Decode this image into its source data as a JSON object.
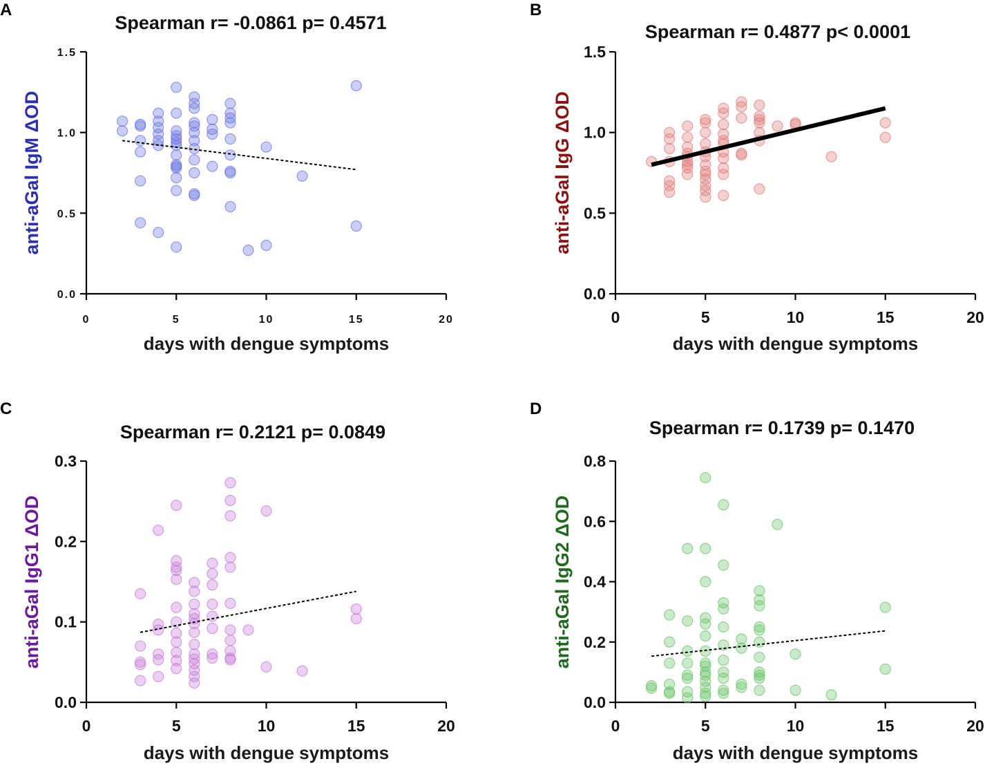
{
  "chart_data": [
    {
      "panel": "A",
      "type": "scatter",
      "title": "Spearman r= -0.0861   p= 0.4571",
      "xlabel": "days with dengue symptoms",
      "ylabel": "anti-aGal IgM ΔOD",
      "xlim": [
        0,
        20
      ],
      "ylim": [
        0.0,
        1.5
      ],
      "xticks": [
        0,
        5,
        10,
        15,
        20
      ],
      "yticks": [
        0.0,
        0.5,
        1.0,
        1.5
      ],
      "ytick_labels": [
        "0.0",
        "0.5",
        "1.0",
        "1.5"
      ],
      "point_color": "#6b74e0",
      "label_color": "#2b2fb0",
      "trend": {
        "x": [
          2,
          15
        ],
        "y": [
          0.95,
          0.77
        ],
        "style": "dashed"
      },
      "points": [
        [
          2,
          1.07
        ],
        [
          2,
          1.01
        ],
        [
          3,
          1.05
        ],
        [
          3,
          1.04
        ],
        [
          3,
          0.95
        ],
        [
          3,
          0.88
        ],
        [
          3,
          0.7
        ],
        [
          3,
          0.44
        ],
        [
          4,
          1.12
        ],
        [
          4,
          1.07
        ],
        [
          4,
          1.03
        ],
        [
          4,
          0.99
        ],
        [
          4,
          0.95
        ],
        [
          4,
          0.92
        ],
        [
          4,
          0.38
        ],
        [
          5,
          1.28
        ],
        [
          5,
          1.12
        ],
        [
          5,
          1.01
        ],
        [
          5,
          0.98
        ],
        [
          5,
          0.96
        ],
        [
          5,
          0.94
        ],
        [
          5,
          0.92
        ],
        [
          5,
          0.86
        ],
        [
          5,
          0.8
        ],
        [
          5,
          0.79
        ],
        [
          5,
          0.78
        ],
        [
          5,
          0.72
        ],
        [
          5,
          0.64
        ],
        [
          5,
          0.29
        ],
        [
          6,
          1.22
        ],
        [
          6,
          1.18
        ],
        [
          6,
          1.15
        ],
        [
          6,
          1.06
        ],
        [
          6,
          1.04
        ],
        [
          6,
          1.0
        ],
        [
          6,
          0.95
        ],
        [
          6,
          0.9
        ],
        [
          6,
          0.83
        ],
        [
          6,
          0.75
        ],
        [
          6,
          0.62
        ],
        [
          6,
          0.61
        ],
        [
          7,
          1.08
        ],
        [
          7,
          1.02
        ],
        [
          7,
          0.99
        ],
        [
          7,
          0.79
        ],
        [
          8,
          1.18
        ],
        [
          8,
          1.12
        ],
        [
          8,
          1.09
        ],
        [
          8,
          1.06
        ],
        [
          8,
          0.96
        ],
        [
          8,
          0.86
        ],
        [
          8,
          0.76
        ],
        [
          8,
          0.75
        ],
        [
          8,
          0.54
        ],
        [
          9,
          0.27
        ],
        [
          10,
          0.91
        ],
        [
          10,
          0.3
        ],
        [
          12,
          0.73
        ],
        [
          15,
          1.29
        ],
        [
          15,
          0.42
        ]
      ]
    },
    {
      "panel": "B",
      "type": "scatter",
      "title": "Spearman r= 0.4877   p< 0.0001",
      "xlabel": "days with dengue symptoms",
      "ylabel": "anti-aGal IgG ΔOD",
      "xlim": [
        0,
        20
      ],
      "ylim": [
        0.0,
        1.5
      ],
      "xticks": [
        0,
        5,
        10,
        15,
        20
      ],
      "yticks": [
        0.0,
        0.5,
        1.0,
        1.5
      ],
      "ytick_labels": [
        "0.0",
        "0.5",
        "1.0",
        "1.5"
      ],
      "point_color": "#e07b7b",
      "label_color": "#8b1010",
      "trend": {
        "x": [
          2,
          15
        ],
        "y": [
          0.8,
          1.15
        ],
        "style": "solid"
      },
      "points": [
        [
          2,
          0.82
        ],
        [
          3,
          1.0
        ],
        [
          3,
          0.96
        ],
        [
          3,
          0.9
        ],
        [
          3,
          0.82
        ],
        [
          3,
          0.7
        ],
        [
          3,
          0.67
        ],
        [
          3,
          0.63
        ],
        [
          4,
          1.04
        ],
        [
          4,
          0.97
        ],
        [
          4,
          0.91
        ],
        [
          4,
          0.87
        ],
        [
          4,
          0.85
        ],
        [
          4,
          0.82
        ],
        [
          4,
          0.8
        ],
        [
          4,
          0.78
        ],
        [
          4,
          0.74
        ],
        [
          5,
          1.08
        ],
        [
          5,
          1.06
        ],
        [
          5,
          1.0
        ],
        [
          5,
          0.93
        ],
        [
          5,
          0.88
        ],
        [
          5,
          0.85
        ],
        [
          5,
          0.8
        ],
        [
          5,
          0.76
        ],
        [
          5,
          0.74
        ],
        [
          5,
          0.71
        ],
        [
          5,
          0.67
        ],
        [
          5,
          0.64
        ],
        [
          5,
          0.6
        ],
        [
          6,
          1.15
        ],
        [
          6,
          1.12
        ],
        [
          6,
          1.05
        ],
        [
          6,
          0.99
        ],
        [
          6,
          0.95
        ],
        [
          6,
          0.93
        ],
        [
          6,
          0.88
        ],
        [
          6,
          0.84
        ],
        [
          6,
          0.78
        ],
        [
          6,
          0.74
        ],
        [
          6,
          0.61
        ],
        [
          7,
          1.19
        ],
        [
          7,
          1.16
        ],
        [
          7,
          1.09
        ],
        [
          7,
          0.87
        ],
        [
          7,
          0.86
        ],
        [
          8,
          1.17
        ],
        [
          8,
          1.1
        ],
        [
          8,
          1.08
        ],
        [
          8,
          1.06
        ],
        [
          8,
          1.0
        ],
        [
          8,
          0.95
        ],
        [
          8,
          0.65
        ],
        [
          9,
          1.04
        ],
        [
          10,
          1.06
        ],
        [
          10,
          1.05
        ],
        [
          12,
          0.85
        ],
        [
          15,
          1.06
        ],
        [
          15,
          0.97
        ]
      ]
    },
    {
      "panel": "C",
      "type": "scatter",
      "title": "Spearman r= 0.2121   p= 0.0849",
      "xlabel": "days with dengue symptoms",
      "ylabel": "anti-aGal IgG1 ΔOD",
      "xlim": [
        0,
        20
      ],
      "ylim": [
        0.0,
        0.3
      ],
      "xticks": [
        0,
        5,
        10,
        15,
        20
      ],
      "yticks": [
        0.0,
        0.1,
        0.2,
        0.3
      ],
      "ytick_labels": [
        "0.0",
        "0.1",
        "0.2",
        "0.3"
      ],
      "point_color": "#c57ad8",
      "label_color": "#6a1a9a",
      "trend": {
        "x": [
          3,
          15
        ],
        "y": [
          0.087,
          0.138
        ],
        "style": "dashed"
      },
      "points": [
        [
          3,
          0.135
        ],
        [
          3,
          0.07
        ],
        [
          3,
          0.05
        ],
        [
          3,
          0.047
        ],
        [
          3,
          0.027
        ],
        [
          4,
          0.214
        ],
        [
          4,
          0.097
        ],
        [
          4,
          0.09
        ],
        [
          4,
          0.06
        ],
        [
          4,
          0.053
        ],
        [
          4,
          0.032
        ],
        [
          5,
          0.245
        ],
        [
          5,
          0.176
        ],
        [
          5,
          0.168
        ],
        [
          5,
          0.164
        ],
        [
          5,
          0.153
        ],
        [
          5,
          0.118
        ],
        [
          5,
          0.1
        ],
        [
          5,
          0.086
        ],
        [
          5,
          0.075
        ],
        [
          5,
          0.062
        ],
        [
          5,
          0.052
        ],
        [
          5,
          0.042
        ],
        [
          6,
          0.149
        ],
        [
          6,
          0.138
        ],
        [
          6,
          0.122
        ],
        [
          6,
          0.11
        ],
        [
          6,
          0.104
        ],
        [
          6,
          0.098
        ],
        [
          6,
          0.087
        ],
        [
          6,
          0.072
        ],
        [
          6,
          0.06
        ],
        [
          6,
          0.054
        ],
        [
          6,
          0.048
        ],
        [
          6,
          0.04
        ],
        [
          6,
          0.032
        ],
        [
          6,
          0.024
        ],
        [
          7,
          0.173
        ],
        [
          7,
          0.16
        ],
        [
          7,
          0.146
        ],
        [
          7,
          0.122
        ],
        [
          7,
          0.107
        ],
        [
          7,
          0.092
        ],
        [
          7,
          0.06
        ],
        [
          7,
          0.055
        ],
        [
          8,
          0.273
        ],
        [
          8,
          0.251
        ],
        [
          8,
          0.232
        ],
        [
          8,
          0.18
        ],
        [
          8,
          0.168
        ],
        [
          8,
          0.123
        ],
        [
          8,
          0.09
        ],
        [
          8,
          0.077
        ],
        [
          8,
          0.064
        ],
        [
          8,
          0.055
        ],
        [
          8,
          0.053
        ],
        [
          9,
          0.09
        ],
        [
          10,
          0.238
        ],
        [
          10,
          0.044
        ],
        [
          12,
          0.039
        ],
        [
          15,
          0.116
        ],
        [
          15,
          0.104
        ]
      ]
    },
    {
      "panel": "D",
      "type": "scatter",
      "title": "Spearman r= 0.1739   p= 0.1470",
      "xlabel": "days with dengue symptoms",
      "ylabel": "anti-aGal IgG2 ΔOD",
      "xlim": [
        0,
        20
      ],
      "ylim": [
        0.0,
        0.8
      ],
      "xticks": [
        0,
        5,
        10,
        15,
        20
      ],
      "yticks": [
        0.0,
        0.2,
        0.4,
        0.6,
        0.8
      ],
      "ytick_labels": [
        "0.0",
        "0.2",
        "0.4",
        "0.6",
        "0.8"
      ],
      "point_color": "#6bc46b",
      "label_color": "#1f6a1f",
      "trend": {
        "x": [
          2,
          15
        ],
        "y": [
          0.153,
          0.237
        ],
        "style": "dashed"
      },
      "points": [
        [
          2,
          0.055
        ],
        [
          2,
          0.047
        ],
        [
          3,
          0.29
        ],
        [
          3,
          0.2
        ],
        [
          3,
          0.13
        ],
        [
          3,
          0.06
        ],
        [
          3,
          0.035
        ],
        [
          3,
          0.03
        ],
        [
          4,
          0.51
        ],
        [
          4,
          0.27
        ],
        [
          4,
          0.17
        ],
        [
          4,
          0.13
        ],
        [
          4,
          0.09
        ],
        [
          4,
          0.08
        ],
        [
          4,
          0.035
        ],
        [
          4,
          0.015
        ],
        [
          5,
          0.745
        ],
        [
          5,
          0.51
        ],
        [
          5,
          0.4
        ],
        [
          5,
          0.28
        ],
        [
          5,
          0.26
        ],
        [
          5,
          0.22
        ],
        [
          5,
          0.17
        ],
        [
          5,
          0.13
        ],
        [
          5,
          0.12
        ],
        [
          5,
          0.1
        ],
        [
          5,
          0.09
        ],
        [
          5,
          0.07
        ],
        [
          5,
          0.05
        ],
        [
          5,
          0.03
        ],
        [
          5,
          0.02
        ],
        [
          6,
          0.655
        ],
        [
          6,
          0.455
        ],
        [
          6,
          0.33
        ],
        [
          6,
          0.31
        ],
        [
          6,
          0.25
        ],
        [
          6,
          0.19
        ],
        [
          6,
          0.14
        ],
        [
          6,
          0.1
        ],
        [
          6,
          0.08
        ],
        [
          6,
          0.04
        ],
        [
          6,
          0.03
        ],
        [
          7,
          0.21
        ],
        [
          7,
          0.18
        ],
        [
          7,
          0.06
        ],
        [
          7,
          0.05
        ],
        [
          8,
          0.37
        ],
        [
          8,
          0.34
        ],
        [
          8,
          0.32
        ],
        [
          8,
          0.25
        ],
        [
          8,
          0.24
        ],
        [
          8,
          0.2
        ],
        [
          8,
          0.15
        ],
        [
          8,
          0.1
        ],
        [
          8,
          0.09
        ],
        [
          8,
          0.08
        ],
        [
          8,
          0.04
        ],
        [
          9,
          0.59
        ],
        [
          10,
          0.16
        ],
        [
          10,
          0.04
        ],
        [
          12,
          0.025
        ],
        [
          15,
          0.315
        ],
        [
          15,
          0.11
        ]
      ]
    }
  ]
}
